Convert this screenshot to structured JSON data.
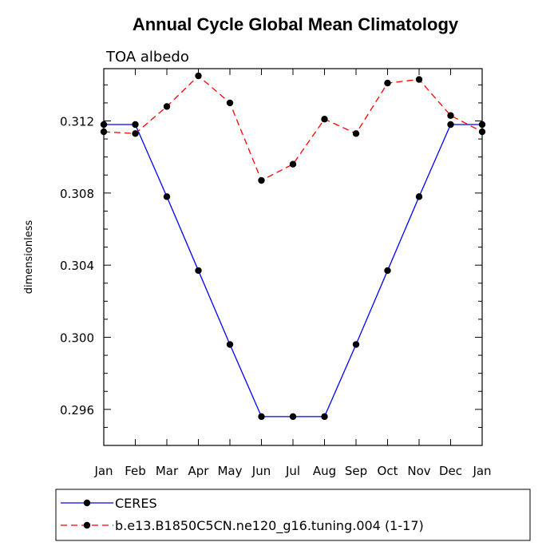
{
  "chart_data": {
    "type": "line",
    "title": "Annual Cycle Global Mean Climatology",
    "subtitle": "TOA albedo",
    "xlabel": "",
    "ylabel": "dimensionless",
    "categories": [
      "Jan",
      "Feb",
      "Mar",
      "Apr",
      "May",
      "Jun",
      "Jul",
      "Aug",
      "Sep",
      "Oct",
      "Nov",
      "Dec",
      "Jan"
    ],
    "ylim": [
      0.294,
      0.3149
    ],
    "yticks": [
      0.296,
      0.3,
      0.304,
      0.308,
      0.312
    ],
    "ytick_labels": [
      "0.296",
      "0.300",
      "0.304",
      "0.308",
      "0.312"
    ],
    "grid": false,
    "legend_position": "bottom",
    "series": [
      {
        "name": "CERES",
        "color": "#0000ff",
        "dash": "solid",
        "marker": "filled-circle",
        "values": [
          0.3118,
          0.3118,
          0.3078,
          0.3037,
          0.2996,
          0.2956,
          0.2956,
          0.2956,
          0.2996,
          0.3037,
          0.3078,
          0.3118,
          0.3118
        ]
      },
      {
        "name": "b.e13.B1850C5CN.ne120_g16.tuning.004 (1-17)",
        "color": "#ff0000",
        "dash": "dashed",
        "marker": "filled-circle",
        "values": [
          0.3114,
          0.3113,
          0.3128,
          0.3145,
          0.313,
          0.3087,
          0.3096,
          0.3121,
          0.3113,
          0.3141,
          0.3143,
          0.3123,
          0.3114
        ]
      }
    ]
  }
}
